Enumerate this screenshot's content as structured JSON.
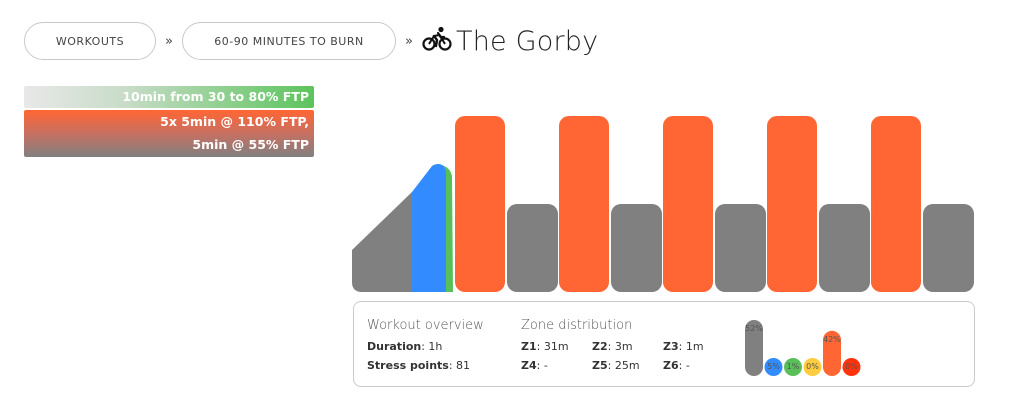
{
  "breadcrumb": {
    "item1": "WORKOUTS",
    "item2": "60-90 MINUTES TO BURN",
    "separator": "»",
    "title": "The Gorby",
    "title_icon": "cyclist-icon"
  },
  "description": {
    "line1": "10min from 30 to 80% FTP",
    "line2": "5x 5min @ 110% FTP,",
    "line3": "5min @ 55% FTP"
  },
  "colors": {
    "z1_gray": "#808080",
    "z2_blue": "#338cff",
    "z3_green": "#59bf59",
    "z4_yellow": "#ffcc3f",
    "z5_orange": "#ff6633",
    "z6_red": "#ff330c"
  },
  "overview": {
    "title": "Workout overview",
    "duration_label": "Duration",
    "duration_value": ": 1h",
    "stress_label": "Stress points",
    "stress_value": ": 81"
  },
  "zones": {
    "title": "Zone distribution",
    "items": [
      {
        "label": "Z1",
        "value": ": 31m"
      },
      {
        "label": "Z2",
        "value": ": 3m"
      },
      {
        "label": "Z3",
        "value": ": 1m"
      },
      {
        "label": "Z4",
        "value": ": -"
      },
      {
        "label": "Z5",
        "value": ": 25m"
      },
      {
        "label": "Z6",
        "value": ": -"
      }
    ],
    "percent_labels": [
      "52%",
      "5%",
      "1%",
      "0%",
      "42%",
      "0%"
    ],
    "percent_values": [
      52,
      5,
      1,
      0,
      42,
      0
    ]
  }
}
